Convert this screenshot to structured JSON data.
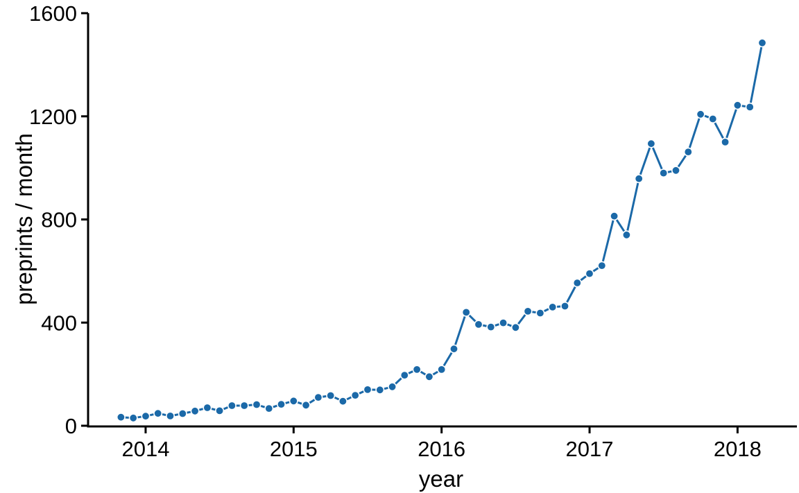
{
  "figure": {
    "background_color": "#ffffff",
    "accent_color": "#1b69a8",
    "axis_color": "#000000"
  },
  "chart_data": {
    "type": "line",
    "title": "",
    "xlabel": "year",
    "ylabel": "preprints / month",
    "grid": false,
    "legend_position": "none",
    "line_color": "#1b69a8",
    "marker": "circle",
    "marker_edge_color": "#ffffff",
    "ylim": [
      0,
      1600
    ],
    "y_ticks": [
      0,
      400,
      800,
      1200,
      1600
    ],
    "y_tick_labels": [
      "0",
      "400",
      "800",
      "1200",
      "1600"
    ],
    "x_tick_labels": [
      "2014",
      "2015",
      "2016",
      "2017",
      "2018"
    ],
    "x": [
      "2013-11",
      "2013-12",
      "2014-01",
      "2014-02",
      "2014-03",
      "2014-04",
      "2014-05",
      "2014-06",
      "2014-07",
      "2014-08",
      "2014-09",
      "2014-10",
      "2014-11",
      "2014-12",
      "2015-01",
      "2015-02",
      "2015-03",
      "2015-04",
      "2015-05",
      "2015-06",
      "2015-07",
      "2015-08",
      "2015-09",
      "2015-10",
      "2015-11",
      "2015-12",
      "2016-01",
      "2016-02",
      "2016-03",
      "2016-04",
      "2016-05",
      "2016-06",
      "2016-07",
      "2016-08",
      "2016-09",
      "2016-10",
      "2016-11",
      "2016-12",
      "2017-01",
      "2017-02",
      "2017-03",
      "2017-04",
      "2017-05",
      "2017-06",
      "2017-07",
      "2017-08",
      "2017-09",
      "2017-10",
      "2017-11",
      "2017-12",
      "2018-01",
      "2018-02",
      "2018-03"
    ],
    "series": [
      {
        "name": "preprints per month",
        "values": [
          33,
          30,
          37,
          48,
          38,
          47,
          57,
          70,
          58,
          78,
          78,
          82,
          67,
          83,
          96,
          80,
          110,
          117,
          95,
          118,
          140,
          139,
          151,
          196,
          218,
          190,
          218,
          298,
          440,
          393,
          383,
          399,
          381,
          444,
          437,
          460,
          464,
          554,
          590,
          621,
          813,
          740,
          958,
          1094,
          980,
          990,
          1062,
          1208,
          1190,
          1100,
          1243,
          1236,
          1485
        ]
      }
    ]
  }
}
